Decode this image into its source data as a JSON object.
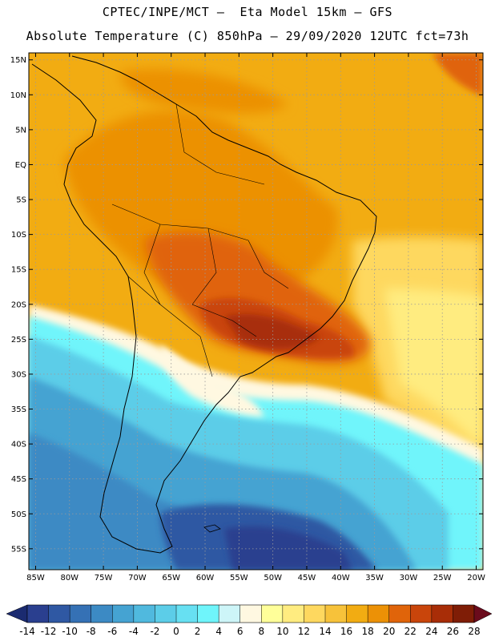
{
  "header": {
    "line1": "CPTEC/INPE/MCT –  Eta Model 15km – GFS",
    "line2": "Absolute Temperature (C) 850hPa – 29/09/2020 12UTC fct=73h"
  },
  "map": {
    "lat_labels": [
      "15N",
      "10N",
      "5N",
      "EQ",
      "5S",
      "10S",
      "15S",
      "20S",
      "25S",
      "30S",
      "35S",
      "40S",
      "45S",
      "50S",
      "55S"
    ],
    "lon_labels": [
      "85W",
      "80W",
      "75W",
      "70W",
      "65W",
      "60W",
      "55W",
      "50W",
      "45W",
      "40W",
      "35W",
      "30W",
      "25W",
      "20W"
    ],
    "extent": {
      "lon_min": -86,
      "lon_max": -19,
      "lat_min": -58,
      "lat_max": 16
    }
  },
  "colorbar": {
    "labels": [
      "-14",
      "-12",
      "-10",
      "-8",
      "-6",
      "-4",
      "-2",
      "0",
      "2",
      "4",
      "6",
      "8",
      "10",
      "12",
      "14",
      "16",
      "18",
      "20",
      "22",
      "24",
      "26",
      "28"
    ],
    "colors": [
      "#2a3f8f",
      "#2f58a3",
      "#3571b5",
      "#3c8ac4",
      "#45a3d2",
      "#50b9de",
      "#5ccde8",
      "#67e0f2",
      "#6ff5fb",
      "#cdf5f8",
      "#fff8e1",
      "#ffff99",
      "#ffec80",
      "#fed85f",
      "#f7c23a",
      "#f2ac12",
      "#ec9106",
      "#e0640a",
      "#c9450b",
      "#a82d07",
      "#7f1d06"
    ],
    "left_arrow_color": "#1b2b70",
    "right_arrow_color": "#6b0b1c"
  }
}
